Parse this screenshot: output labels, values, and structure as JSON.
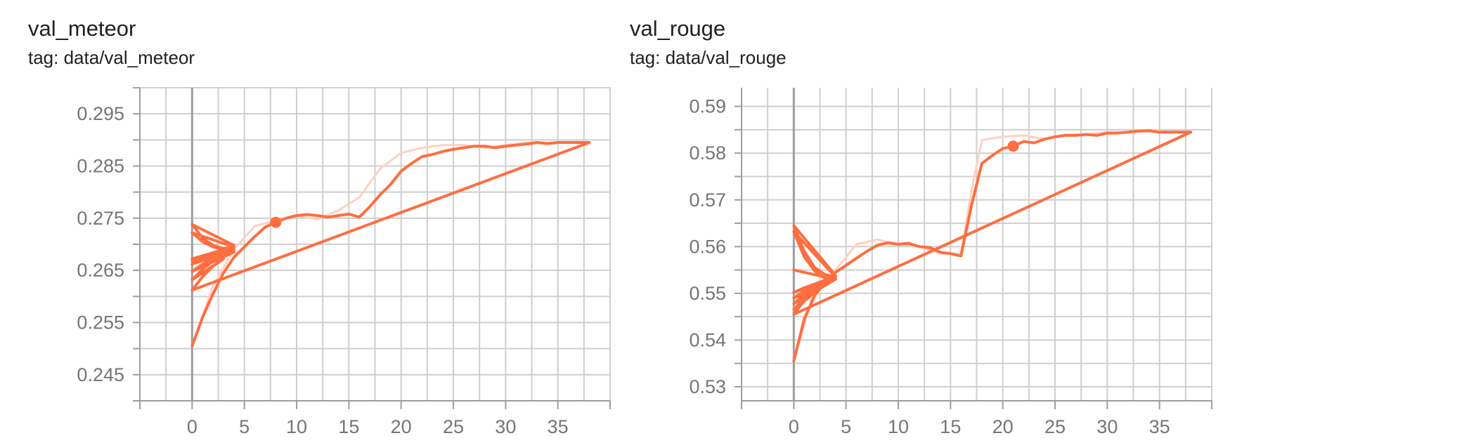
{
  "colors": {
    "line": "#ff6e40",
    "line_faint": "#ffd0c2",
    "grid": "#cfcfcf",
    "axis": "#9e9e9e",
    "zero_line": "#9e9e9e"
  },
  "charts": [
    {
      "title": "val_meteor",
      "tag": "tag: data/val_meteor"
    },
    {
      "title": "val_rouge",
      "tag": "tag: data/val_rouge"
    }
  ],
  "chart_data": [
    {
      "type": "line",
      "title": "val_meteor",
      "subtitle": "tag: data/val_meteor",
      "xlim": [
        -5,
        40
      ],
      "ylim": [
        0.24,
        0.3
      ],
      "x_ticks": [
        0,
        5,
        10,
        15,
        20,
        25,
        30,
        35
      ],
      "x_tick_labels": [
        "0",
        "5",
        "10",
        "15",
        "20",
        "25",
        "30",
        "35"
      ],
      "y_ticks": [
        0.245,
        0.255,
        0.265,
        0.275,
        0.285,
        0.295
      ],
      "y_tick_labels": [
        "0.245",
        "0.255",
        "0.265",
        "0.275",
        "0.285",
        "0.295"
      ],
      "grid": true,
      "series": [
        {
          "style": "smoothed",
          "x": [
            0,
            1,
            2,
            3,
            4,
            5,
            6,
            7,
            8,
            9,
            10,
            11,
            12,
            13,
            14,
            15,
            16,
            17,
            18,
            19,
            20,
            21,
            22,
            23,
            24,
            25,
            26,
            27,
            28,
            29,
            30,
            31,
            32,
            33,
            34,
            35,
            36,
            37,
            38,
            0,
            1,
            2,
            3,
            0,
            1,
            2,
            3,
            4,
            0,
            1,
            2,
            3,
            4,
            0,
            1,
            2,
            3,
            4,
            0,
            1,
            2,
            3,
            4,
            0,
            1,
            2,
            3,
            4,
            0,
            1,
            2,
            3,
            4,
            0
          ],
          "y": [
            0.2505,
            0.256,
            0.2605,
            0.2645,
            0.2675,
            0.2695,
            0.2715,
            0.2733,
            0.2742,
            0.275,
            0.2755,
            0.2757,
            0.2755,
            0.2752,
            0.2755,
            0.2758,
            0.2752,
            0.2772,
            0.2795,
            0.2815,
            0.284,
            0.2855,
            0.2868,
            0.2872,
            0.2878,
            0.2882,
            0.2885,
            0.2888,
            0.2888,
            0.2885,
            0.2888,
            0.289,
            0.2892,
            0.2895,
            0.2893,
            0.2895,
            0.2895,
            0.2895,
            0.2895,
            0.2612,
            0.2638,
            0.2658,
            0.2672,
            0.2632,
            0.2652,
            0.2668,
            0.2678,
            0.2685,
            0.2648,
            0.2662,
            0.2672,
            0.268,
            0.2688,
            0.2662,
            0.2672,
            0.268,
            0.2686,
            0.2692,
            0.2672,
            0.2678,
            0.2684,
            0.269,
            0.2698,
            0.2738,
            0.2712,
            0.2698,
            0.2692,
            0.2695,
            0.2722,
            0.2705,
            0.2695,
            0.269,
            0.2692,
            0.2668
          ]
        },
        {
          "style": "raw",
          "x": [
            0,
            2,
            4,
            6,
            8,
            10,
            12,
            14,
            16,
            18,
            20,
            22,
            24,
            26,
            28,
            30,
            32,
            34,
            36,
            38
          ],
          "y": [
            0.2505,
            0.262,
            0.269,
            0.2735,
            0.2745,
            0.2755,
            0.2748,
            0.2765,
            0.279,
            0.2845,
            0.2875,
            0.2885,
            0.289,
            0.289,
            0.2885,
            0.289,
            0.2895,
            0.2893,
            0.2895,
            0.2895
          ]
        }
      ],
      "highlight_point": {
        "x": 8,
        "y": 0.2742
      }
    },
    {
      "type": "line",
      "title": "val_rouge",
      "subtitle": "tag: data/val_rouge",
      "xlim": [
        -5,
        40
      ],
      "ylim": [
        0.527,
        0.594
      ],
      "x_ticks": [
        0,
        5,
        10,
        15,
        20,
        25,
        30,
        35
      ],
      "x_tick_labels": [
        "0",
        "5",
        "10",
        "15",
        "20",
        "25",
        "30",
        "35"
      ],
      "y_ticks": [
        0.53,
        0.54,
        0.55,
        0.56,
        0.57,
        0.58,
        0.59
      ],
      "y_tick_labels": [
        "0.53",
        "0.54",
        "0.55",
        "0.56",
        "0.57",
        "0.58",
        "0.59"
      ],
      "grid": true,
      "series": [
        {
          "style": "smoothed",
          "x": [
            0,
            1,
            2,
            3,
            4,
            5,
            6,
            7,
            8,
            9,
            10,
            11,
            12,
            13,
            14,
            15,
            16,
            17,
            18,
            19,
            20,
            21,
            22,
            23,
            24,
            25,
            26,
            27,
            28,
            29,
            30,
            31,
            32,
            33,
            34,
            35,
            36,
            37,
            38,
            0,
            1,
            2,
            3,
            0,
            1,
            2,
            3,
            4,
            0,
            1,
            2,
            3,
            4,
            0,
            1,
            2,
            3,
            4,
            0,
            1,
            2,
            3,
            4,
            0,
            1,
            2,
            3,
            4,
            0,
            1,
            2,
            3,
            4,
            0
          ],
          "y": [
            0.5355,
            0.5445,
            0.5495,
            0.5525,
            0.5545,
            0.556,
            0.5575,
            0.559,
            0.5603,
            0.5608,
            0.5605,
            0.5607,
            0.56,
            0.5598,
            0.5588,
            0.5585,
            0.558,
            0.5688,
            0.5778,
            0.5795,
            0.581,
            0.5815,
            0.5825,
            0.5822,
            0.583,
            0.5835,
            0.5838,
            0.5838,
            0.584,
            0.5838,
            0.5843,
            0.5843,
            0.5845,
            0.5847,
            0.5848,
            0.5845,
            0.5845,
            0.5845,
            0.5845,
            0.5455,
            0.5485,
            0.5505,
            0.552,
            0.5465,
            0.549,
            0.5508,
            0.552,
            0.553,
            0.5478,
            0.5498,
            0.5512,
            0.5522,
            0.5532,
            0.549,
            0.5505,
            0.5515,
            0.5525,
            0.5535,
            0.5502,
            0.5512,
            0.552,
            0.5528,
            0.5538,
            0.5645,
            0.559,
            0.5555,
            0.554,
            0.5535,
            0.5632,
            0.5578,
            0.5548,
            0.5532,
            0.553,
            0.555
          ]
        },
        {
          "style": "raw",
          "x": [
            0,
            2,
            4,
            6,
            8,
            10,
            12,
            14,
            16,
            17,
            18,
            20,
            22,
            24,
            26,
            28,
            30,
            32,
            34,
            36,
            38
          ],
          "y": [
            0.5355,
            0.551,
            0.555,
            0.5605,
            0.5615,
            0.5605,
            0.56,
            0.5585,
            0.5585,
            0.572,
            0.5828,
            0.5835,
            0.5838,
            0.583,
            0.584,
            0.584,
            0.5845,
            0.5845,
            0.585,
            0.5845,
            0.5845
          ]
        }
      ],
      "highlight_point": {
        "x": 21,
        "y": 0.5815
      }
    }
  ]
}
